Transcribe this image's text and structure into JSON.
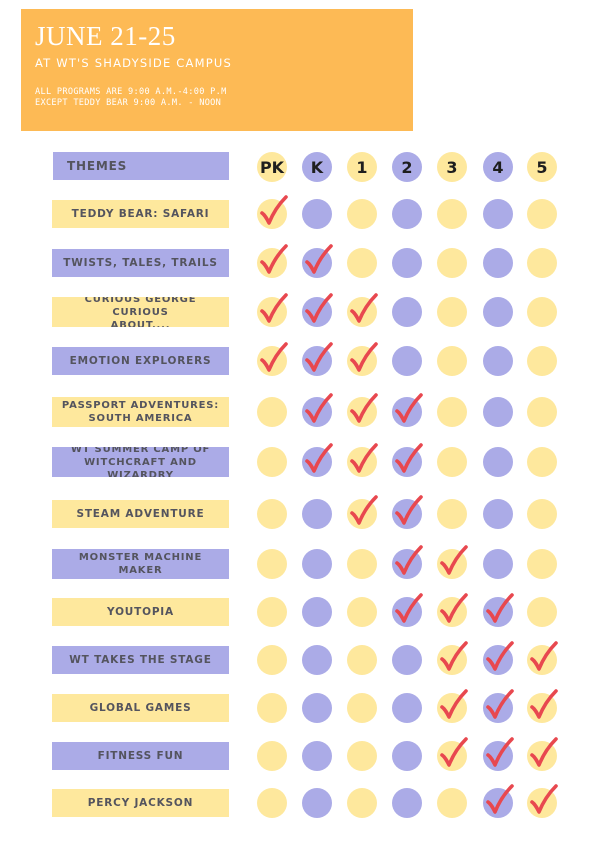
{
  "header": {
    "title": "JUNE 21-25",
    "subtitle": "AT WT'S SHADYSIDE CAMPUS",
    "note_line1": "ALL PROGRAMS ARE 9:00 A.M.-4:00 P.M",
    "note_line2": "EXCEPT TEDDY BEAR 9:00 A.M. - NOON",
    "color": "#FDBA55"
  },
  "colors": {
    "yellow": "#FEE89D",
    "purple": "#ABABE7",
    "check": "#E8484F"
  },
  "table": {
    "themes_header": "THEMES",
    "columns": [
      "PK",
      "K",
      "1",
      "2",
      "3",
      "4",
      "5"
    ],
    "column_colors": [
      "yellow",
      "purple",
      "yellow",
      "purple",
      "yellow",
      "purple",
      "yellow"
    ],
    "rows": [
      {
        "line1": "TEDDY BEAR: SAFARI",
        "line2": "",
        "label_color": "yellow",
        "checks": [
          true,
          false,
          false,
          false,
          false,
          false,
          false
        ]
      },
      {
        "line1": "TWISTS, TALES, TRAILS",
        "line2": "",
        "label_color": "purple",
        "checks": [
          true,
          true,
          false,
          false,
          false,
          false,
          false
        ]
      },
      {
        "line1": "CURIOUS GEORGE CURIOUS",
        "line2": "ABOUT....",
        "label_color": "yellow",
        "checks": [
          true,
          true,
          true,
          false,
          false,
          false,
          false
        ]
      },
      {
        "line1": "EMOTION EXPLORERS",
        "line2": "",
        "label_color": "purple",
        "checks": [
          true,
          true,
          true,
          false,
          false,
          false,
          false
        ]
      },
      {
        "line1": "PASSPORT ADVENTURES:",
        "line2": "SOUTH AMERICA",
        "label_color": "yellow",
        "checks": [
          false,
          true,
          true,
          true,
          false,
          false,
          false
        ]
      },
      {
        "line1": "WT SUMMER CAMP OF",
        "line2": "WITCHCRAFT AND WIZARDRY",
        "label_color": "purple",
        "checks": [
          false,
          true,
          true,
          true,
          false,
          false,
          false
        ]
      },
      {
        "line1": "STEAM ADVENTURE",
        "line2": "",
        "label_color": "yellow",
        "checks": [
          false,
          false,
          true,
          true,
          false,
          false,
          false
        ]
      },
      {
        "line1": "MONSTER MACHINE",
        "line2": "MAKER",
        "label_color": "purple",
        "checks": [
          false,
          false,
          false,
          true,
          true,
          false,
          false
        ]
      },
      {
        "line1": "YOUTOPIA",
        "line2": "",
        "label_color": "yellow",
        "checks": [
          false,
          false,
          false,
          true,
          true,
          true,
          false
        ]
      },
      {
        "line1": "WT TAKES THE STAGE",
        "line2": "",
        "label_color": "purple",
        "checks": [
          false,
          false,
          false,
          false,
          true,
          true,
          true
        ]
      },
      {
        "line1": "GLOBAL GAMES",
        "line2": "",
        "label_color": "yellow",
        "checks": [
          false,
          false,
          false,
          false,
          true,
          true,
          true
        ]
      },
      {
        "line1": "FITNESS FUN",
        "line2": "",
        "label_color": "purple",
        "checks": [
          false,
          false,
          false,
          false,
          true,
          true,
          true
        ]
      },
      {
        "line1": "PERCY JACKSON",
        "line2": "",
        "label_color": "yellow",
        "checks": [
          false,
          false,
          false,
          false,
          false,
          true,
          true
        ]
      }
    ]
  }
}
